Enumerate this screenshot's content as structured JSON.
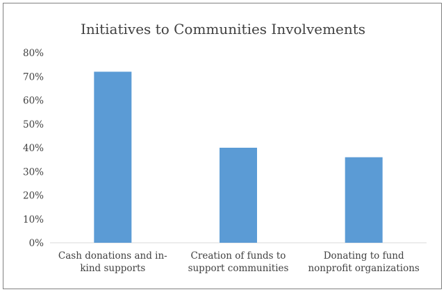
{
  "chart_data": {
    "type": "bar",
    "title": "Initiatives to Communities Involvements",
    "categories": [
      [
        "Cash donations and in-",
        "kind supports"
      ],
      [
        "Creation of funds to",
        "support communities"
      ],
      [
        "Donating to fund",
        "nonprofit organizations"
      ]
    ],
    "values": [
      72,
      40,
      36
    ],
    "yticks": [
      "0%",
      "10%",
      "20%",
      "30%",
      "40%",
      "50%",
      "60%",
      "70%",
      "80%"
    ],
    "ylim": [
      0,
      80
    ],
    "grid": false,
    "legend": "none",
    "colors": {
      "bar": "#5b9bd5",
      "axis": "#d9d9d9",
      "text": "#404040",
      "border": "#7f7f7f"
    }
  }
}
